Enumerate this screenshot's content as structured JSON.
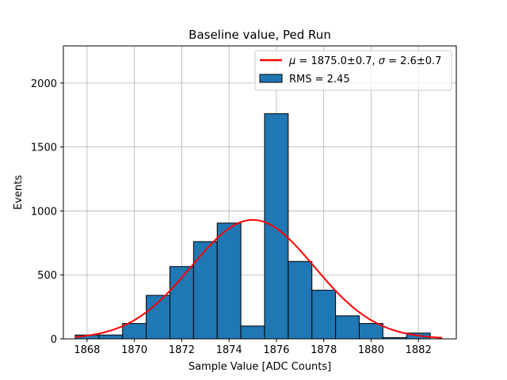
{
  "chart_data": {
    "type": "bar",
    "title": "Baseline value, Ped Run",
    "xlabel": "Sample Value [ADC Counts]",
    "ylabel": "Events",
    "xlim": [
      1867.0,
      1883.6
    ],
    "ylim": [
      0,
      2290
    ],
    "xticks": [
      1868,
      1870,
      1872,
      1874,
      1876,
      1878,
      1880,
      1882
    ],
    "yticks": [
      0,
      500,
      1000,
      1500,
      2000
    ],
    "grid": true,
    "legend_position": "top-right",
    "histogram": {
      "name": "RMS = 2.45",
      "color": "#1f77b4",
      "edge_color": "#000000",
      "bin_edges": [
        1867.5,
        1868.5,
        1869.5,
        1870.5,
        1871.5,
        1872.5,
        1873.5,
        1874.5,
        1875.5,
        1876.5,
        1877.5,
        1878.5,
        1879.5,
        1880.5,
        1881.5,
        1882.5
      ],
      "counts": [
        30,
        30,
        120,
        340,
        565,
        760,
        905,
        100,
        1760,
        605,
        380,
        180,
        120,
        10,
        45
      ]
    },
    "fit": {
      "name": "μ = 1875.0±0.7, σ = 2.6±0.7",
      "name_mu": "μ",
      "name_mu_value": " = 1875.0±0.7, ",
      "name_sigma": "σ",
      "name_sigma_value": " = 2.6±0.7",
      "type": "gaussian",
      "mean": 1875.0,
      "sigma": 2.6,
      "amplitude": 930,
      "x_range": [
        1867.5,
        1883.0
      ],
      "color": "#ff0000"
    },
    "legend": {
      "fit_label": "μ = 1875.0±0.7, σ = 2.6±0.7",
      "hist_label": "RMS = 2.45"
    }
  }
}
